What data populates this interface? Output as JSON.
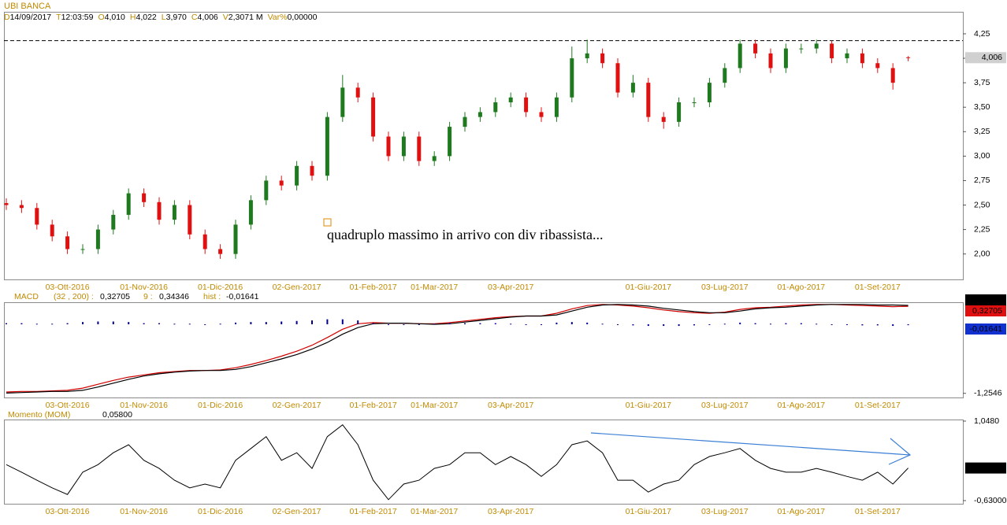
{
  "chart_data": [
    {
      "type": "candlestick",
      "title": "UBI BANCA",
      "info": [
        {
          "key": "D",
          "text": "14/09/2017"
        },
        {
          "key": "T",
          "text": "12:03:59"
        },
        {
          "key": "O",
          "text": "4,010"
        },
        {
          "key": "H",
          "text": "4,022"
        },
        {
          "key": "L",
          "text": "3,970"
        },
        {
          "key": "C",
          "text": "4,006"
        },
        {
          "key": "V",
          "text": "2,3071 M"
        },
        {
          "key": "Var%",
          "text": "0,00000"
        }
      ],
      "categories": [
        null,
        null,
        null,
        null,
        "03-Ott-2016",
        null,
        null,
        null,
        null,
        "01-Nov-2016",
        null,
        null,
        null,
        null,
        "01-Dic-2016",
        null,
        null,
        null,
        null,
        "02-Gen-2017",
        null,
        null,
        null,
        null,
        "01-Feb-2017",
        null,
        null,
        null,
        "01-Mar-2017",
        null,
        null,
        null,
        null,
        "03-Apr-2017",
        null,
        null,
        null,
        null,
        null,
        null,
        null,
        null,
        "01-Giu-2017",
        null,
        null,
        null,
        null,
        "03-Lug-2017",
        null,
        null,
        null,
        null,
        "01-Ago-2017",
        null,
        null,
        null,
        null,
        "01-Set-2017",
        null,
        null
      ],
      "open": [
        2.52,
        2.5,
        2.47,
        2.3,
        2.18,
        2.05,
        2.05,
        2.25,
        2.4,
        2.62,
        2.53,
        2.35,
        2.5,
        2.2,
        2.05,
        2.0,
        2.3,
        2.55,
        2.75,
        2.7,
        2.9,
        2.8,
        3.4,
        3.7,
        3.6,
        3.2,
        3.0,
        3.2,
        2.95,
        3.0,
        3.3,
        3.4,
        3.45,
        3.55,
        3.6,
        3.45,
        3.4,
        3.6,
        4.0,
        4.05,
        3.95,
        3.65,
        3.75,
        3.4,
        3.35,
        3.55,
        3.55,
        3.75,
        3.9,
        4.15,
        4.05,
        3.9,
        4.1,
        4.1,
        4.15,
        4.0,
        4.05,
        3.95,
        3.9,
        4.01
      ],
      "high": [
        2.57,
        2.55,
        2.52,
        2.35,
        2.23,
        2.1,
        2.3,
        2.45,
        2.67,
        2.67,
        2.58,
        2.55,
        2.55,
        2.25,
        2.1,
        2.35,
        2.6,
        2.8,
        2.8,
        2.95,
        2.95,
        3.45,
        3.83,
        3.75,
        3.65,
        3.25,
        3.25,
        3.25,
        3.05,
        3.35,
        3.45,
        3.5,
        3.6,
        3.65,
        3.65,
        3.5,
        3.65,
        4.12,
        4.19,
        4.1,
        4.0,
        3.83,
        3.8,
        3.45,
        3.6,
        3.6,
        3.8,
        3.95,
        4.19,
        4.19,
        4.1,
        4.15,
        4.15,
        4.19,
        4.18,
        4.1,
        4.1,
        4.0,
        3.95,
        4.022
      ],
      "low": [
        2.45,
        2.42,
        2.25,
        2.13,
        2.0,
        2.0,
        2.0,
        2.2,
        2.35,
        2.48,
        2.3,
        2.3,
        2.15,
        2.0,
        1.95,
        1.95,
        2.25,
        2.5,
        2.65,
        2.65,
        2.75,
        2.75,
        3.35,
        3.55,
        3.15,
        2.95,
        2.95,
        2.9,
        2.9,
        2.95,
        3.25,
        3.35,
        3.4,
        3.5,
        3.4,
        3.35,
        3.35,
        3.55,
        3.95,
        3.9,
        3.6,
        3.6,
        3.35,
        3.28,
        3.3,
        3.5,
        3.5,
        3.7,
        3.85,
        4.0,
        3.85,
        3.85,
        4.05,
        4.05,
        3.95,
        3.95,
        3.9,
        3.85,
        3.68,
        3.97
      ],
      "close": [
        2.5,
        2.47,
        2.3,
        2.18,
        2.05,
        2.05,
        2.25,
        2.4,
        2.62,
        2.53,
        2.35,
        2.5,
        2.2,
        2.05,
        2.0,
        2.3,
        2.55,
        2.75,
        2.7,
        2.9,
        2.8,
        3.4,
        3.7,
        3.6,
        3.2,
        3.0,
        3.2,
        2.95,
        3.0,
        3.3,
        3.4,
        3.45,
        3.55,
        3.6,
        3.45,
        3.4,
        3.6,
        4.0,
        4.05,
        3.95,
        3.65,
        3.75,
        3.4,
        3.35,
        3.55,
        3.55,
        3.75,
        3.9,
        4.15,
        4.05,
        3.9,
        4.1,
        4.1,
        4.15,
        4.0,
        4.05,
        3.95,
        3.9,
        3.75,
        4.006
      ],
      "up_color": "#1f7a1f",
      "down_color": "#e01010",
      "ylim": [
        1.74,
        4.475
      ],
      "yticks": [
        {
          "value": 2.0,
          "label": "2,00"
        },
        {
          "value": 2.25,
          "label": "2,25"
        },
        {
          "value": 2.5,
          "label": "2,50"
        },
        {
          "value": 2.75,
          "label": "2,75"
        },
        {
          "value": 3.0,
          "label": "3,00"
        },
        {
          "value": 3.25,
          "label": "3,25"
        },
        {
          "value": 3.5,
          "label": "3,50"
        },
        {
          "value": 3.75,
          "label": "3,75"
        },
        {
          "value": 4.0,
          "label": "4,00"
        },
        {
          "value": 4.25,
          "label": "4,25"
        }
      ],
      "last_value": {
        "value": 4.006,
        "label": "4,006"
      },
      "hline": 4.18,
      "annotation": "quadruplo massimo in arrivo con div ribassista..."
    },
    {
      "type": "macd",
      "title": "MACD",
      "series": [
        {
          "label": "(32 , 200) :",
          "color": "#d00000",
          "style": "line",
          "value_label": "0,32705",
          "values": [
            -1.23,
            -1.22,
            -1.22,
            -1.21,
            -1.2,
            -1.16,
            -1.09,
            -1.02,
            -0.96,
            -0.92,
            -0.88,
            -0.86,
            -0.84,
            -0.84,
            -0.83,
            -0.79,
            -0.73,
            -0.66,
            -0.58,
            -0.49,
            -0.38,
            -0.24,
            -0.09,
            0.01,
            0.03,
            0.02,
            0.02,
            0.01,
            0.01,
            0.03,
            0.06,
            0.09,
            0.12,
            0.14,
            0.15,
            0.15,
            0.2,
            0.28,
            0.34,
            0.36,
            0.35,
            0.33,
            0.3,
            0.26,
            0.23,
            0.21,
            0.2,
            0.22,
            0.27,
            0.3,
            0.31,
            0.33,
            0.35,
            0.36,
            0.36,
            0.35,
            0.34,
            0.33,
            0.32,
            0.32705
          ]
        },
        {
          "label": "9 :",
          "color": "#000000",
          "style": "line",
          "value_label": "0,34346",
          "values": [
            -1.25,
            -1.24,
            -1.23,
            -1.22,
            -1.22,
            -1.2,
            -1.14,
            -1.07,
            -1.0,
            -0.94,
            -0.9,
            -0.87,
            -0.85,
            -0.84,
            -0.84,
            -0.82,
            -0.77,
            -0.7,
            -0.63,
            -0.55,
            -0.45,
            -0.33,
            -0.18,
            -0.06,
            0.01,
            0.02,
            0.02,
            0.01,
            0.0,
            0.01,
            0.04,
            0.07,
            0.1,
            0.13,
            0.15,
            0.15,
            0.17,
            0.24,
            0.31,
            0.35,
            0.36,
            0.35,
            0.33,
            0.29,
            0.26,
            0.23,
            0.21,
            0.21,
            0.24,
            0.28,
            0.3,
            0.31,
            0.33,
            0.35,
            0.36,
            0.36,
            0.36,
            0.35,
            0.35,
            0.34346
          ]
        },
        {
          "label": "hist :",
          "color": "#00008b",
          "style": "histogram",
          "value_label": "-0,01641",
          "values": [
            0.02,
            0.02,
            0.01,
            0.01,
            0.02,
            0.04,
            0.05,
            0.05,
            0.04,
            0.02,
            0.02,
            0.01,
            0.01,
            0.0,
            0.01,
            0.03,
            0.04,
            0.04,
            0.05,
            0.06,
            0.07,
            0.09,
            0.09,
            0.07,
            0.02,
            0.0,
            0.0,
            0.0,
            0.01,
            0.02,
            0.02,
            0.02,
            0.02,
            0.01,
            0.0,
            0.0,
            0.03,
            0.04,
            0.03,
            0.01,
            -0.01,
            -0.02,
            -0.03,
            -0.03,
            -0.03,
            -0.02,
            -0.01,
            0.01,
            0.03,
            0.02,
            0.01,
            0.02,
            0.02,
            0.01,
            0.0,
            -0.01,
            -0.02,
            -0.02,
            -0.03,
            -0.01641
          ]
        }
      ],
      "ylim": [
        -1.33,
        0.4
      ],
      "yticks": [
        {
          "value": -1.2546,
          "label": "-1,2546"
        }
      ]
    },
    {
      "type": "line",
      "title": "Momento (MOM)",
      "value_label": "0,05800",
      "color": "#000000",
      "values": [
        0.13,
        -0.03,
        -0.2,
        -0.36,
        -0.5,
        -0.03,
        0.13,
        0.38,
        0.55,
        0.22,
        0.05,
        -0.2,
        -0.36,
        -0.28,
        -0.36,
        0.22,
        0.47,
        0.72,
        0.22,
        0.38,
        0.05,
        0.72,
        0.97,
        0.55,
        -0.2,
        -0.61,
        -0.28,
        -0.2,
        0.05,
        0.13,
        0.38,
        0.38,
        0.13,
        0.3,
        0.13,
        -0.12,
        0.13,
        0.55,
        0.63,
        0.38,
        -0.2,
        -0.2,
        -0.45,
        -0.28,
        -0.2,
        0.13,
        0.3,
        0.38,
        0.47,
        0.22,
        0.05,
        -0.03,
        -0.03,
        0.05,
        -0.03,
        -0.12,
        -0.2,
        -0.03,
        -0.28,
        0.058
      ],
      "ylim": [
        -0.696,
        1.081
      ],
      "yticks": [
        {
          "value": 1.048,
          "label": "1,0480"
        },
        {
          "value": -0.63,
          "label": "-0,63000"
        }
      ]
    }
  ]
}
